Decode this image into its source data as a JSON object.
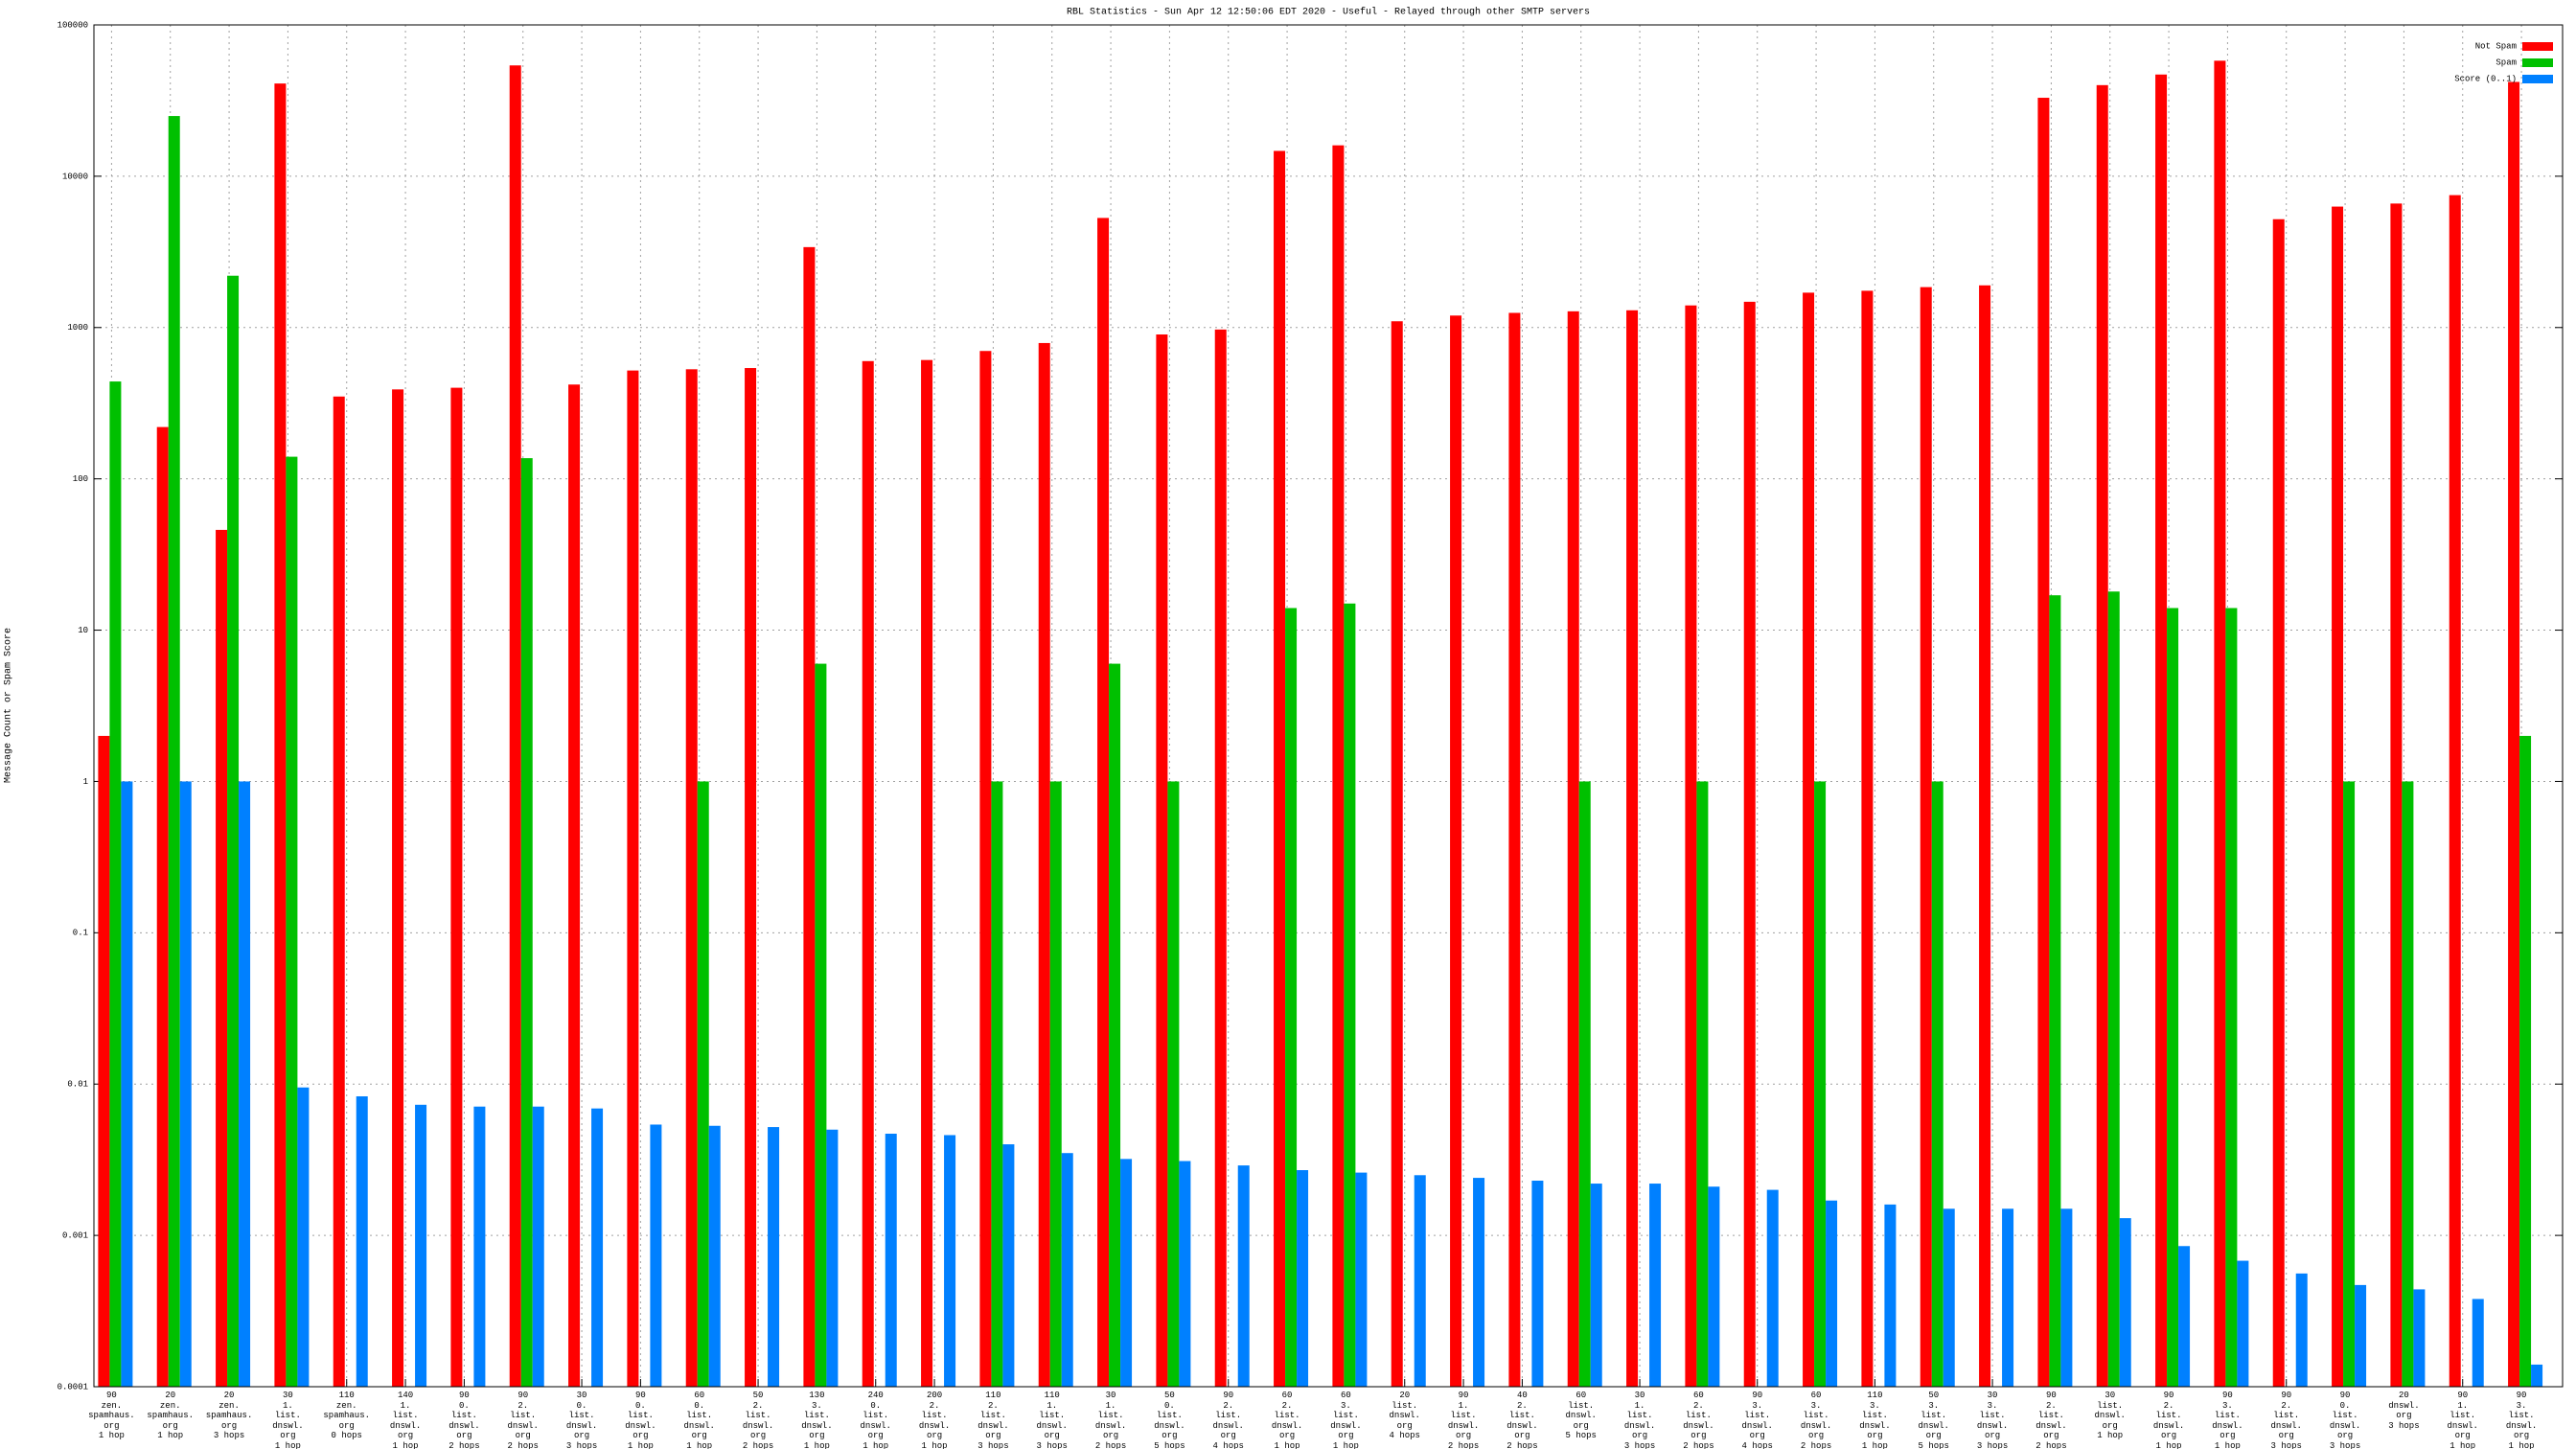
{
  "chart_data": {
    "type": "bar",
    "title": "RBL Statistics - Sun Apr 12 12:50:06 EDT 2020 - Useful - Relayed through other SMTP servers",
    "ylabel": "Message Count or Spam Score",
    "log_y": true,
    "grid": true,
    "legend": "top-right",
    "ylim": [
      0.0001,
      100000
    ],
    "yticks": [
      0.0001,
      0.001,
      0.01,
      0.1,
      1,
      10,
      100,
      1000,
      10000,
      100000
    ],
    "categories": [
      "90\nzen.\nspamhaus.\norg\n1 hop",
      "20\nzen.\nspamhaus.\norg\n1 hop",
      "20\nzen.\nspamhaus.\norg\n3 hops",
      "30\n1.\nlist.\ndnswl.\norg\n1 hop",
      "110\nzen.\nspamhaus.\norg\n0 hops",
      "140\n1.\nlist.\ndnswl.\norg\n1 hop",
      "90\n0.\nlist.\ndnswl.\norg\n2 hops",
      "90\n2.\nlist.\ndnswl.\norg\n2 hops",
      "30\n0.\nlist.\ndnswl.\norg\n3 hops",
      "90\n0.\nlist.\ndnswl.\norg\n1 hop",
      "60\n0.\nlist.\ndnswl.\norg\n1 hop",
      "50\n2.\nlist.\ndnswl.\norg\n2 hops",
      "130\n3.\nlist.\ndnswl.\norg\n1 hop",
      "240\n0.\nlist.\ndnswl.\norg\n1 hop",
      "200\n2.\nlist.\ndnswl.\norg\n1 hop",
      "110\n2.\nlist.\ndnswl.\norg\n3 hops",
      "110\n1.\nlist.\ndnswl.\norg\n3 hops",
      "30\n1.\nlist.\ndnswl.\norg\n2 hops",
      "50\n0.\nlist.\ndnswl.\norg\n5 hops",
      "90\n2.\nlist.\ndnswl.\norg\n4 hops",
      "60\n2.\nlist.\ndnswl.\norg\n1 hop",
      "60\n3.\nlist.\ndnswl.\norg\n1 hop",
      "20\nlist.\ndnswl.\norg\n4 hops",
      "90\n1.\nlist.\ndnswl.\norg\n2 hops",
      "40\n2.\nlist.\ndnswl.\norg\n2 hops",
      "60\nlist.\ndnswl.\norg\n5 hops",
      "30\n1.\nlist.\ndnswl.\norg\n3 hops",
      "60\n2.\nlist.\ndnswl.\norg\n2 hops",
      "90\n3.\nlist.\ndnswl.\norg\n4 hops",
      "60\n3.\nlist.\ndnswl.\norg\n2 hops",
      "110\n3.\nlist.\ndnswl.\norg\n1 hop",
      "50\n3.\nlist.\ndnswl.\norg\n5 hops",
      "30\n3.\nlist.\ndnswl.\norg\n3 hops",
      "90\n2.\nlist.\ndnswl.\norg\n2 hops",
      "30\nlist.\ndnswl.\norg\n1 hop",
      "90\n2.\nlist.\ndnswl.\norg\n1 hop",
      "90\n3.\nlist.\ndnswl.\norg\n1 hop",
      "90\n2.\nlist.\ndnswl.\norg\n3 hops",
      "90\n0.\nlist.\ndnswl.\norg\n3 hops",
      "20\ndnswl.\norg\n3 hops",
      "90\n1.\nlist.\ndnswl.\norg\n1 hop",
      "90\n3.\nlist.\ndnswl.\norg\n1 hop"
    ],
    "series": [
      {
        "name": "Not Spam",
        "color": "#ff0000",
        "values": [
          2,
          220,
          46,
          41000,
          350,
          390,
          400,
          54000,
          420,
          520,
          530,
          540,
          3400,
          600,
          610,
          700,
          790,
          5300,
          900,
          970,
          14700,
          16000,
          1100,
          1200,
          1250,
          1280,
          1300,
          1400,
          1480,
          1700,
          1750,
          1850,
          1900,
          33000,
          40000,
          47000,
          58000,
          5200,
          6300,
          6600,
          7500,
          42000
        ]
      },
      {
        "name": "Spam",
        "color": "#00c000",
        "values": [
          440,
          25000,
          2200,
          140,
          null,
          null,
          null,
          137,
          null,
          null,
          1,
          null,
          6,
          null,
          null,
          1,
          1,
          6,
          1,
          null,
          14,
          15,
          null,
          null,
          null,
          1,
          null,
          1,
          null,
          1,
          null,
          1,
          null,
          17,
          18,
          14,
          14,
          null,
          1,
          1,
          null,
          2
        ]
      },
      {
        "name": "Score (0..1)",
        "color": "#0080ff",
        "values": [
          1,
          1,
          1,
          0.0095,
          0.0083,
          0.0073,
          0.0071,
          0.0071,
          0.0069,
          0.0054,
          0.0053,
          0.0052,
          0.005,
          0.0047,
          0.0046,
          0.004,
          0.0035,
          0.0032,
          0.0031,
          0.0029,
          0.0027,
          0.0026,
          0.0025,
          0.0024,
          0.0023,
          0.0022,
          0.0022,
          0.0021,
          0.002,
          0.0017,
          0.0016,
          0.0015,
          0.0015,
          0.0015,
          0.0013,
          0.00085,
          0.00068,
          0.00056,
          0.00047,
          0.00044,
          0.00038,
          0.00014
        ]
      }
    ]
  }
}
